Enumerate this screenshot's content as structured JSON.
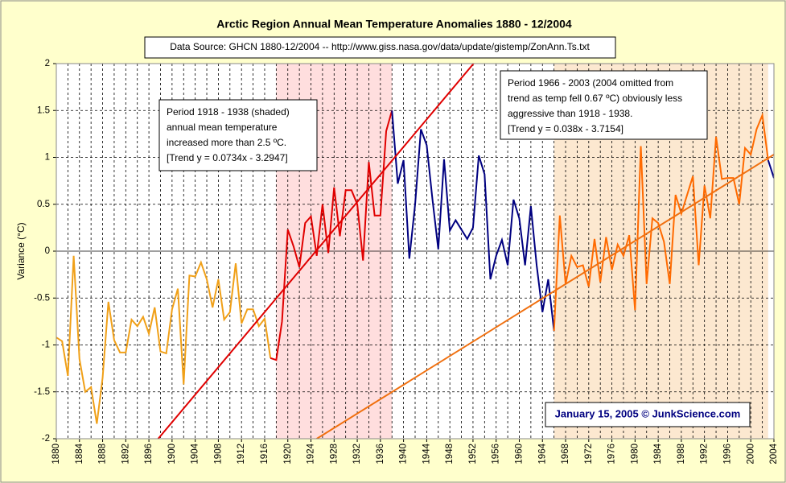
{
  "chart_data": {
    "type": "line",
    "title": "Arctic Region Annual Mean Temperature Anomalies 1880 - 12/2004",
    "subtitle": "Data Source: GHCN 1880-12/2004 -- http://www.giss.nasa.gov/data/update/gistemp/ZonAnn.Ts.txt",
    "y_label": "Variance (°C)",
    "xlim": [
      1880,
      2004
    ],
    "ylim": [
      -2,
      2
    ],
    "xticks": [
      1880,
      1884,
      1888,
      1892,
      1896,
      1900,
      1904,
      1908,
      1912,
      1916,
      1920,
      1924,
      1928,
      1932,
      1936,
      1940,
      1944,
      1948,
      1952,
      1956,
      1960,
      1964,
      1968,
      1972,
      1976,
      1980,
      1984,
      1988,
      1992,
      1996,
      2000,
      2004
    ],
    "xgrid_step": 2,
    "yticks": [
      -2,
      -1.5,
      -1,
      -0.5,
      0,
      0.5,
      1,
      1.5,
      2
    ],
    "grid": true,
    "shaded": [
      {
        "x": [
          1918,
          1938
        ],
        "color": "#ffdede"
      },
      {
        "x": [
          1966,
          2003
        ],
        "color": "#fce8d0"
      }
    ],
    "series": [
      {
        "color": "#f0a018",
        "x": [
          1880,
          1881,
          1882,
          1883,
          1884,
          1885,
          1886,
          1887,
          1888,
          1889,
          1890,
          1891,
          1892,
          1893,
          1894,
          1895,
          1896,
          1897,
          1898,
          1899,
          1900,
          1901,
          1902,
          1903,
          1904,
          1905,
          1906,
          1907,
          1908,
          1909,
          1910,
          1911,
          1912,
          1913,
          1914,
          1915,
          1916,
          1917
        ],
        "values": [
          -0.92,
          -0.96,
          -1.33,
          -0.05,
          -1.15,
          -1.5,
          -1.45,
          -1.84,
          -1.35,
          -0.54,
          -0.95,
          -1.08,
          -1.08,
          -0.73,
          -0.8,
          -0.7,
          -0.88,
          -0.6,
          -1.07,
          -1.09,
          -0.62,
          -0.4,
          -1.42,
          -0.26,
          -0.27,
          -0.12,
          -0.3,
          -0.6,
          -0.3,
          -0.73,
          -0.65,
          -0.13,
          -0.77,
          -0.62,
          -0.62,
          -0.8,
          -0.72,
          -1.14
        ]
      },
      {
        "color": "#e00000",
        "x": [
          1917,
          1918,
          1919,
          1920,
          1921,
          1922,
          1923,
          1924,
          1925,
          1926,
          1927,
          1928,
          1929,
          1930,
          1931,
          1932,
          1933,
          1934,
          1935,
          1936,
          1937,
          1938
        ],
        "values": [
          -1.14,
          -1.16,
          -0.75,
          0.23,
          0.05,
          -0.17,
          0.3,
          0.37,
          -0.05,
          0.5,
          -0.02,
          0.68,
          0.16,
          0.65,
          0.65,
          0.5,
          -0.1,
          0.95,
          0.38,
          0.38,
          1.28,
          1.5
        ]
      },
      {
        "color": "#000080",
        "x": [
          1938,
          1939,
          1940,
          1941,
          1942,
          1943,
          1944,
          1945,
          1946,
          1947,
          1948,
          1949,
          1950,
          1951,
          1952,
          1953,
          1954,
          1955,
          1956,
          1957,
          1958,
          1959,
          1960,
          1961,
          1962,
          1963,
          1964,
          1965,
          1966
        ],
        "values": [
          1.5,
          0.72,
          0.97,
          -0.08,
          0.5,
          1.3,
          1.13,
          0.55,
          0.02,
          0.98,
          0.22,
          0.33,
          0.23,
          0.13,
          0.25,
          1.02,
          0.82,
          -0.3,
          -0.05,
          0.12,
          -0.15,
          0.55,
          0.35,
          -0.15,
          0.48,
          -0.15,
          -0.65,
          -0.3,
          -0.85
        ]
      },
      {
        "color": "#ff6a00",
        "x": [
          1966,
          1967,
          1968,
          1969,
          1970,
          1971,
          1972,
          1973,
          1974,
          1975,
          1976,
          1977,
          1978,
          1979,
          1980,
          1981,
          1982,
          1983,
          1984,
          1985,
          1986,
          1987,
          1988,
          1989,
          1990,
          1991,
          1992,
          1993,
          1994,
          1995,
          1996,
          1997,
          1998,
          1999,
          2000,
          2001,
          2002,
          2003
        ],
        "values": [
          -0.85,
          0.38,
          -0.35,
          -0.05,
          -0.17,
          -0.15,
          -0.38,
          0.13,
          -0.33,
          0.15,
          -0.2,
          0.07,
          -0.05,
          0.17,
          -0.63,
          1.12,
          -0.35,
          0.35,
          0.3,
          0.1,
          -0.35,
          0.6,
          0.4,
          0.6,
          0.8,
          -0.15,
          0.7,
          0.35,
          1.22,
          0.77,
          0.78,
          0.78,
          0.5,
          1.1,
          1.03,
          1.3,
          1.45,
          0.97
        ]
      },
      {
        "color": "#000080",
        "x": [
          2003,
          2004
        ],
        "values": [
          0.97,
          0.78
        ]
      },
      {
        "color": "#e00000",
        "x": [
          1897.6,
          1952.1
        ],
        "values": [
          -2,
          2
        ]
      },
      {
        "color": "#f07010",
        "x": [
          1925,
          2004
        ],
        "values": [
          -2,
          1.03
        ]
      }
    ],
    "annotations": [
      {
        "lines": [
          "Period 1918 - 1938 (shaded)",
          "annual mean temperature",
          "increased more than 2.5 ºC.",
          "[Trend y = 0.0734x - 3.2947]"
        ]
      },
      {
        "lines": [
          "Period 1966 - 2003 (2004 omitted from",
          "trend as temp fell 0.67 ºC) obviously less",
          "aggressive than 1918 - 1938.",
          "[Trend y = 0.038x - 3.7154]"
        ]
      }
    ],
    "credit": "January 15, 2005 © JunkScience.com"
  }
}
